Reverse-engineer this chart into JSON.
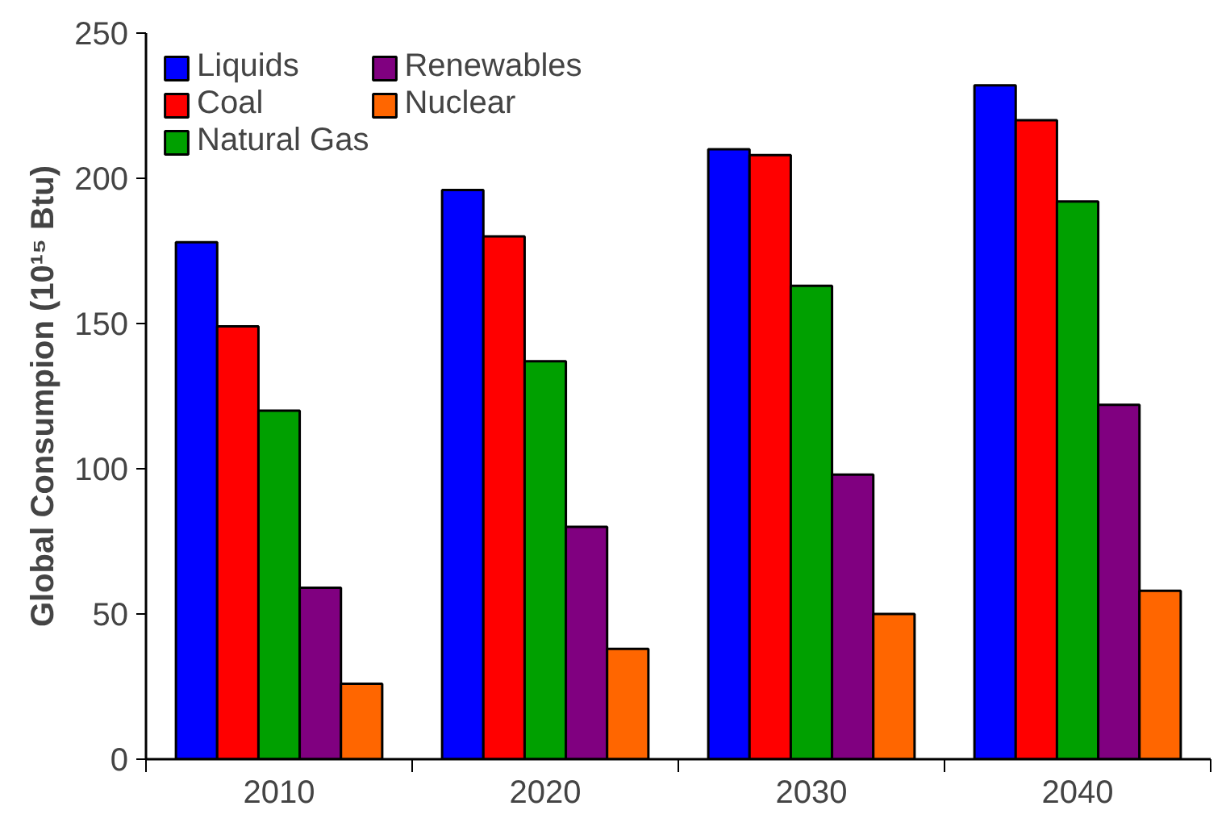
{
  "chart_data": {
    "type": "bar",
    "ylabel": "Global Consumpion (10¹⁵ Btu)",
    "categories": [
      "2010",
      "2020",
      "2030",
      "2040"
    ],
    "series": [
      {
        "name": "Liquids",
        "color": "#0000ff",
        "values": [
          178,
          196,
          210,
          232
        ]
      },
      {
        "name": "Coal",
        "color": "#ff0000",
        "values": [
          149,
          180,
          208,
          220
        ]
      },
      {
        "name": "Natural Gas",
        "color": "#00a000",
        "values": [
          120,
          137,
          163,
          192
        ]
      },
      {
        "name": "Renewables",
        "color": "#800080",
        "values": [
          59,
          80,
          98,
          122
        ]
      },
      {
        "name": "Nuclear",
        "color": "#ff6600",
        "values": [
          26,
          38,
          50,
          58
        ]
      }
    ],
    "ylim": [
      0,
      250
    ],
    "yticks": [
      0,
      50,
      100,
      150,
      200,
      250
    ],
    "grid": false,
    "legend": "top left"
  }
}
